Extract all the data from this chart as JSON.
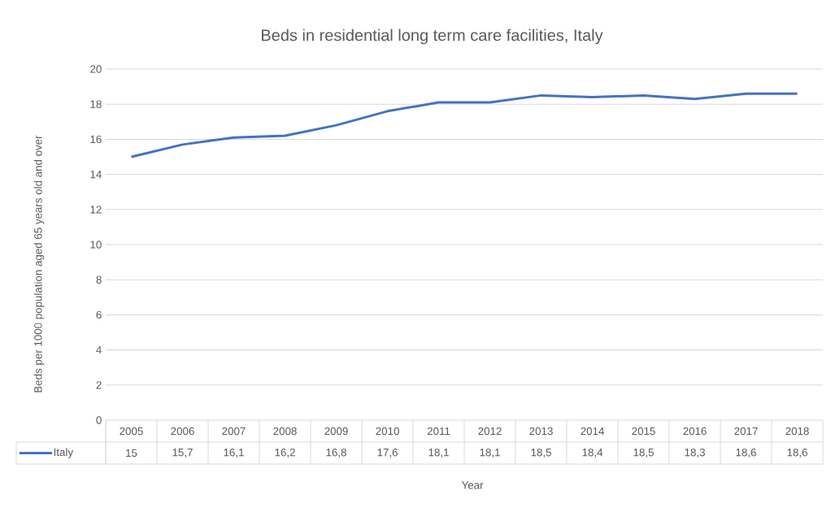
{
  "chart_data": {
    "type": "line",
    "title": "Beds in residential long term care facilities, Italy",
    "xlabel": "Year",
    "ylabel": "Beds per 1000 population aged 65 years old and over",
    "categories": [
      "2005",
      "2006",
      "2007",
      "2008",
      "2009",
      "2010",
      "2011",
      "2012",
      "2013",
      "2014",
      "2015",
      "2016",
      "2017",
      "2018"
    ],
    "series": [
      {
        "name": "Italy",
        "color": "#4472c4",
        "values": [
          15,
          15.7,
          16.1,
          16.2,
          16.8,
          17.6,
          18.1,
          18.1,
          18.5,
          18.4,
          18.5,
          18.3,
          18.6,
          18.6
        ],
        "value_labels": [
          "15",
          "15,7",
          "16,1",
          "16,2",
          "16,8",
          "17,6",
          "18,1",
          "18,1",
          "18,5",
          "18,4",
          "18,5",
          "18,3",
          "18,6",
          "18,6"
        ]
      }
    ],
    "ylim": [
      0,
      20
    ],
    "yticks": [
      0,
      2,
      4,
      6,
      8,
      10,
      12,
      14,
      16,
      18,
      20
    ],
    "grid": "y",
    "legend": "bottom",
    "marker": "none",
    "line_style": "solid"
  }
}
